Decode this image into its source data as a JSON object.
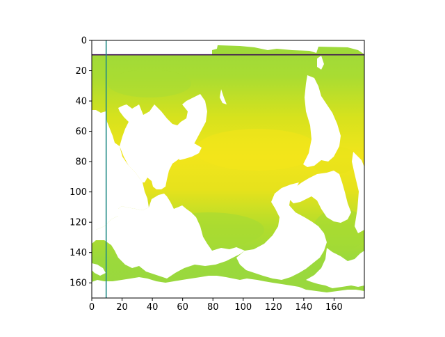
{
  "chart_data": {
    "type": "heatmap",
    "title": "",
    "xlabel": "",
    "ylabel": "",
    "xlim": [
      0,
      180
    ],
    "ylim": [
      170,
      0
    ],
    "x_ticks": [
      0,
      20,
      40,
      60,
      80,
      100,
      120,
      140,
      160
    ],
    "y_ticks": [
      0,
      20,
      40,
      60,
      80,
      100,
      120,
      140,
      160
    ],
    "data_rows": [
      0,
      170
    ],
    "grid": false,
    "colormap": "viridis",
    "mask_color": "#ffffff",
    "colors": {
      "ocean_warm": "#f2e51b",
      "ocean_mid": "#c9e020",
      "ocean_cool": "#9bd93c",
      "hline_color": "#3b0f4f",
      "vline_color": "#1f8a86"
    },
    "lines": [
      {
        "orientation": "horizontal",
        "y": 9.5
      },
      {
        "orientation": "vertical",
        "x": 9.5
      }
    ]
  }
}
